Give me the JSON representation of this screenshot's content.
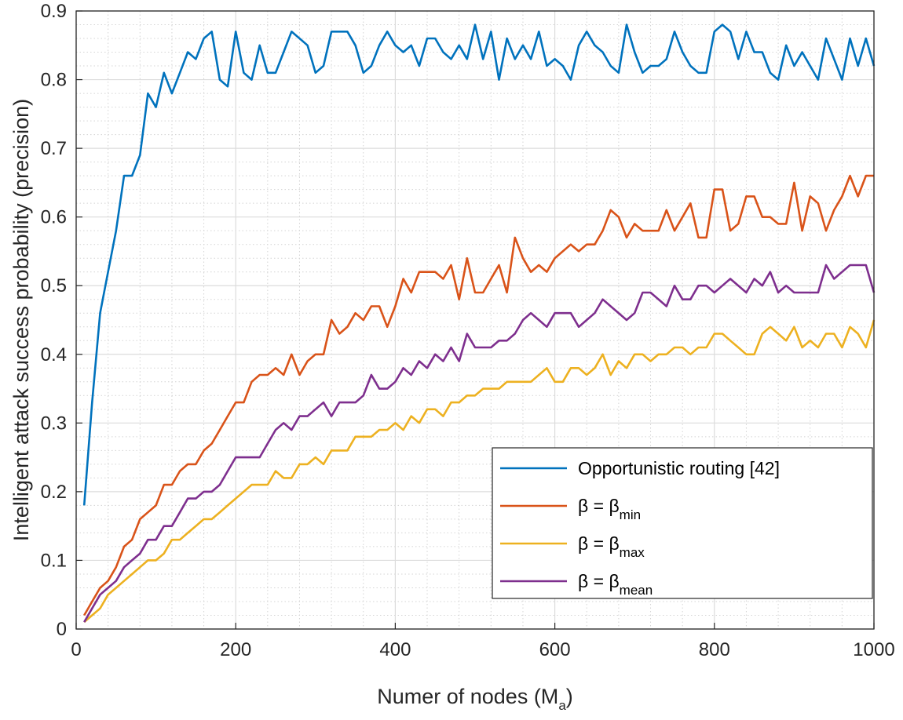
{
  "chart_data": {
    "type": "line",
    "title": "",
    "xlabel": "Numer of nodes (M",
    "xlabel_subscript": "a",
    "xlabel_close": ")",
    "ylabel": "Intelligent attack success probability (precision)",
    "xlim": [
      0,
      1000
    ],
    "ylim": [
      0,
      0.9
    ],
    "grid": true,
    "minor_grid": true,
    "legend_position": "bottom-right",
    "x_ticks": [
      "0",
      "200",
      "400",
      "600",
      "800",
      "1000"
    ],
    "y_ticks": [
      "0",
      "0.1",
      "0.2",
      "0.3",
      "0.4",
      "0.5",
      "0.6",
      "0.7",
      "0.8",
      "0.9"
    ],
    "x": [
      10,
      20,
      30,
      40,
      50,
      60,
      70,
      80,
      90,
      100,
      110,
      120,
      130,
      140,
      150,
      160,
      170,
      180,
      190,
      200,
      210,
      220,
      230,
      240,
      250,
      260,
      270,
      280,
      290,
      300,
      310,
      320,
      330,
      340,
      350,
      360,
      370,
      380,
      390,
      400,
      410,
      420,
      430,
      440,
      450,
      460,
      470,
      480,
      490,
      500,
      510,
      520,
      530,
      540,
      550,
      560,
      570,
      580,
      590,
      600,
      610,
      620,
      630,
      640,
      650,
      660,
      670,
      680,
      690,
      700,
      710,
      720,
      730,
      740,
      750,
      760,
      770,
      780,
      790,
      800,
      810,
      820,
      830,
      840,
      850,
      860,
      870,
      880,
      890,
      900,
      910,
      920,
      930,
      940,
      950,
      960,
      970,
      980,
      990,
      1000
    ],
    "series": [
      {
        "name": "Opportunistic routing [42]",
        "legend_prefix": "Opportunistic routing [42]",
        "legend_subscript": "",
        "color": "#0072BD",
        "values": [
          0.18,
          0.33,
          0.46,
          0.52,
          0.58,
          0.66,
          0.66,
          0.69,
          0.78,
          0.76,
          0.81,
          0.78,
          0.81,
          0.84,
          0.83,
          0.86,
          0.87,
          0.8,
          0.79,
          0.87,
          0.81,
          0.8,
          0.85,
          0.81,
          0.81,
          0.84,
          0.87,
          0.86,
          0.85,
          0.81,
          0.82,
          0.87,
          0.87,
          0.87,
          0.85,
          0.81,
          0.82,
          0.85,
          0.87,
          0.85,
          0.84,
          0.85,
          0.82,
          0.86,
          0.86,
          0.84,
          0.83,
          0.85,
          0.83,
          0.88,
          0.83,
          0.87,
          0.8,
          0.86,
          0.83,
          0.85,
          0.83,
          0.87,
          0.82,
          0.83,
          0.82,
          0.8,
          0.85,
          0.87,
          0.85,
          0.84,
          0.82,
          0.81,
          0.88,
          0.84,
          0.81,
          0.82,
          0.82,
          0.83,
          0.87,
          0.84,
          0.82,
          0.81,
          0.81,
          0.87,
          0.88,
          0.87,
          0.83,
          0.87,
          0.84,
          0.84,
          0.81,
          0.8,
          0.85,
          0.82,
          0.84,
          0.82,
          0.8,
          0.86,
          0.83,
          0.8,
          0.86,
          0.82,
          0.86,
          0.82
        ]
      },
      {
        "name": "β = β_min",
        "legend_prefix": "β = β",
        "legend_subscript": "min",
        "color": "#D95319",
        "values": [
          0.02,
          0.04,
          0.06,
          0.07,
          0.09,
          0.12,
          0.13,
          0.16,
          0.17,
          0.18,
          0.21,
          0.21,
          0.23,
          0.24,
          0.24,
          0.26,
          0.27,
          0.29,
          0.31,
          0.33,
          0.33,
          0.36,
          0.37,
          0.37,
          0.38,
          0.37,
          0.4,
          0.37,
          0.39,
          0.4,
          0.4,
          0.45,
          0.43,
          0.44,
          0.46,
          0.45,
          0.47,
          0.47,
          0.44,
          0.47,
          0.51,
          0.49,
          0.52,
          0.52,
          0.52,
          0.51,
          0.53,
          0.48,
          0.54,
          0.49,
          0.49,
          0.51,
          0.53,
          0.49,
          0.57,
          0.54,
          0.52,
          0.53,
          0.52,
          0.54,
          0.55,
          0.56,
          0.55,
          0.56,
          0.56,
          0.58,
          0.61,
          0.6,
          0.57,
          0.59,
          0.58,
          0.58,
          0.58,
          0.61,
          0.58,
          0.6,
          0.62,
          0.57,
          0.57,
          0.64,
          0.64,
          0.58,
          0.59,
          0.63,
          0.63,
          0.6,
          0.6,
          0.59,
          0.59,
          0.65,
          0.58,
          0.63,
          0.62,
          0.58,
          0.61,
          0.63,
          0.66,
          0.63,
          0.66,
          0.66
        ]
      },
      {
        "name": "β = β_max",
        "legend_prefix": "β = β",
        "legend_subscript": "max",
        "color": "#EDB120",
        "values": [
          0.01,
          0.02,
          0.03,
          0.05,
          0.06,
          0.07,
          0.08,
          0.09,
          0.1,
          0.1,
          0.11,
          0.13,
          0.13,
          0.14,
          0.15,
          0.16,
          0.16,
          0.17,
          0.18,
          0.19,
          0.2,
          0.21,
          0.21,
          0.21,
          0.23,
          0.22,
          0.22,
          0.24,
          0.24,
          0.25,
          0.24,
          0.26,
          0.26,
          0.26,
          0.28,
          0.28,
          0.28,
          0.29,
          0.29,
          0.3,
          0.29,
          0.31,
          0.3,
          0.32,
          0.32,
          0.31,
          0.33,
          0.33,
          0.34,
          0.34,
          0.35,
          0.35,
          0.35,
          0.36,
          0.36,
          0.36,
          0.36,
          0.37,
          0.38,
          0.36,
          0.36,
          0.38,
          0.38,
          0.37,
          0.38,
          0.4,
          0.37,
          0.39,
          0.38,
          0.4,
          0.4,
          0.39,
          0.4,
          0.4,
          0.41,
          0.41,
          0.4,
          0.41,
          0.41,
          0.43,
          0.43,
          0.42,
          0.41,
          0.4,
          0.4,
          0.43,
          0.44,
          0.43,
          0.42,
          0.44,
          0.41,
          0.42,
          0.41,
          0.43,
          0.43,
          0.41,
          0.44,
          0.43,
          0.41,
          0.45
        ]
      },
      {
        "name": "β = β_mean",
        "legend_prefix": "β = β",
        "legend_subscript": "mean",
        "color": "#7E2F8E",
        "values": [
          0.01,
          0.03,
          0.05,
          0.06,
          0.07,
          0.09,
          0.1,
          0.11,
          0.13,
          0.13,
          0.15,
          0.15,
          0.17,
          0.19,
          0.19,
          0.2,
          0.2,
          0.21,
          0.23,
          0.25,
          0.25,
          0.25,
          0.25,
          0.27,
          0.29,
          0.3,
          0.29,
          0.31,
          0.31,
          0.32,
          0.33,
          0.31,
          0.33,
          0.33,
          0.33,
          0.34,
          0.37,
          0.35,
          0.35,
          0.36,
          0.38,
          0.37,
          0.39,
          0.38,
          0.4,
          0.39,
          0.41,
          0.39,
          0.43,
          0.41,
          0.41,
          0.41,
          0.42,
          0.42,
          0.43,
          0.45,
          0.46,
          0.45,
          0.44,
          0.46,
          0.46,
          0.46,
          0.44,
          0.45,
          0.46,
          0.48,
          0.47,
          0.46,
          0.45,
          0.46,
          0.49,
          0.49,
          0.48,
          0.47,
          0.5,
          0.48,
          0.48,
          0.5,
          0.5,
          0.49,
          0.5,
          0.51,
          0.5,
          0.49,
          0.51,
          0.5,
          0.52,
          0.49,
          0.5,
          0.49,
          0.49,
          0.49,
          0.49,
          0.53,
          0.51,
          0.52,
          0.53,
          0.53,
          0.53,
          0.49
        ]
      }
    ]
  }
}
